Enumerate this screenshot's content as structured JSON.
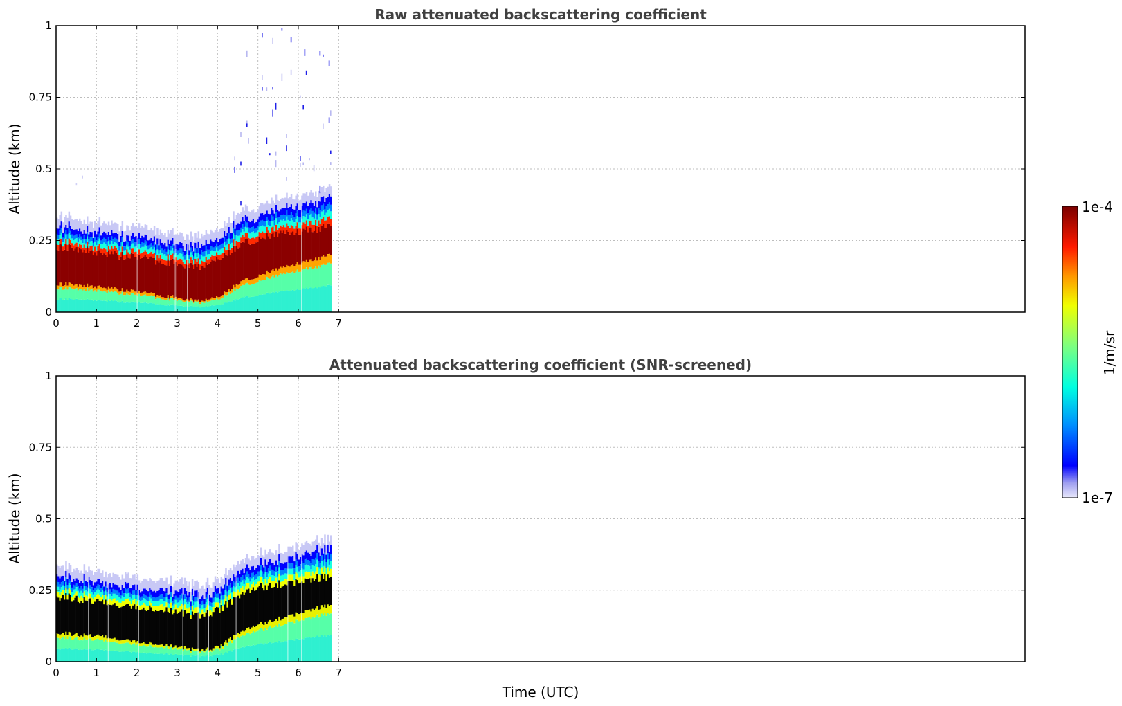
{
  "chart_data": [
    {
      "type": "heatmap",
      "title": "Raw attenuated backscattering coefficient",
      "xlabel": "",
      "ylabel": "Altitude (km)",
      "xlim": [
        0,
        24
      ],
      "ylim": [
        0,
        1
      ],
      "x_ticks": [
        "0",
        "1",
        "2",
        "3",
        "4",
        "5",
        "6",
        "7"
      ],
      "y_ticks": [
        "0",
        "0.25",
        "0.5",
        "0.75",
        "1"
      ],
      "grid": true,
      "data_time_range_hours": [
        0,
        6.8
      ],
      "layer_profile": {
        "time_hours": [
          0,
          1,
          2,
          3,
          3.5,
          4,
          4.5,
          5,
          6,
          6.8
        ],
        "red_band_bottom_km": [
          0.1,
          0.09,
          0.07,
          0.05,
          0.04,
          0.05,
          0.1,
          0.13,
          0.17,
          0.2
        ],
        "red_band_top_km": [
          0.23,
          0.21,
          0.19,
          0.17,
          0.16,
          0.18,
          0.23,
          0.26,
          0.28,
          0.3
        ],
        "blue_top_km": [
          0.3,
          0.28,
          0.26,
          0.24,
          0.23,
          0.25,
          0.31,
          0.34,
          0.37,
          0.4
        ]
      }
    },
    {
      "type": "heatmap",
      "title": "Attenuated backscattering coefficient (SNR-screened)",
      "xlabel": "Time (UTC)",
      "ylabel": "Altitude (km)",
      "xlim": [
        0,
        24
      ],
      "ylim": [
        0,
        1
      ],
      "x_ticks": [
        "0",
        "1",
        "2",
        "3",
        "4",
        "5",
        "6",
        "7"
      ],
      "y_ticks": [
        "0",
        "0.25",
        "0.5",
        "0.75",
        "1"
      ],
      "grid": true,
      "data_time_range_hours": [
        0,
        6.8
      ],
      "screened_band_color": "#000000"
    }
  ],
  "colorbar": {
    "label": "1/m/sr",
    "min_label": "1e-7",
    "max_label": "1e-4",
    "scale": "log",
    "colormap": "jet"
  }
}
